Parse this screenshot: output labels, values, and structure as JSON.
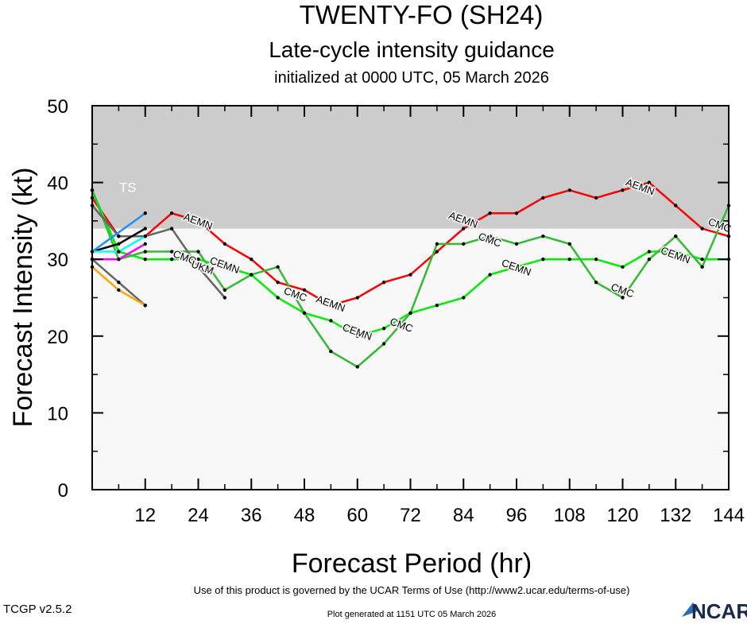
{
  "chart_data": {
    "type": "line",
    "title": "TWENTY-FO (SH24)",
    "subtitle": "Late-cycle intensity guidance",
    "subtitle2": "initialized at 0000 UTC, 05 March 2026",
    "xlabel": "Forecast Period (hr)",
    "ylabel": "Forecast Intensity (kt)",
    "xlim": [
      0,
      144
    ],
    "ylim": [
      0,
      50
    ],
    "xticks": [
      12,
      24,
      36,
      48,
      60,
      72,
      84,
      96,
      108,
      120,
      132,
      144
    ],
    "yticks": [
      0,
      10,
      20,
      30,
      40,
      50
    ],
    "band": {
      "label": "TS",
      "from": 34,
      "to": 50,
      "color": "#cccccc"
    },
    "background": "#f8f8f8",
    "series": [
      {
        "name": "AEMN",
        "color": "#ff0000",
        "x": [
          0,
          6,
          12,
          18,
          24,
          30,
          36,
          42,
          48,
          54,
          60,
          66,
          72,
          78,
          84,
          90,
          96,
          102,
          108,
          114,
          120,
          126,
          132,
          138,
          144
        ],
        "values": [
          38,
          33,
          33,
          36,
          35,
          32,
          30,
          27,
          26,
          24,
          25,
          27,
          28,
          31,
          34,
          36,
          36,
          38,
          39,
          38,
          39,
          40,
          37,
          34,
          33
        ]
      },
      {
        "name": "CEMN",
        "color": "#00ee00",
        "x": [
          0,
          6,
          12,
          18,
          24,
          30,
          36,
          42,
          48,
          54,
          60,
          66,
          72,
          78,
          84,
          90,
          96,
          102,
          108,
          114,
          120,
          126,
          132,
          138,
          144
        ],
        "values": [
          39,
          31,
          30,
          30,
          30,
          29,
          28,
          25,
          23,
          22,
          20,
          21,
          23,
          24,
          25,
          28,
          29,
          30,
          30,
          30,
          29,
          31,
          31,
          30,
          30
        ]
      },
      {
        "name": "CMC",
        "color": "#33bb33",
        "x": [
          0,
          6,
          12,
          18,
          24,
          30,
          36,
          42,
          48,
          54,
          60,
          66,
          72,
          78,
          84,
          90,
          96,
          102,
          108,
          114,
          120,
          126,
          132,
          138,
          144
        ],
        "values": [
          39,
          30,
          31,
          31,
          31,
          26,
          28,
          29,
          23,
          18,
          16,
          19,
          23,
          32,
          32,
          33,
          32,
          33,
          32,
          27,
          25,
          30,
          33,
          29,
          37
        ]
      },
      {
        "name": "UKM",
        "color": "#666666",
        "x": [
          0,
          6,
          12,
          18,
          24,
          30
        ],
        "values": [
          37,
          33,
          33,
          34,
          29,
          25
        ]
      },
      {
        "color": "#000000",
        "x": [
          0,
          6,
          12
        ],
        "values": [
          31,
          32,
          34
        ]
      },
      {
        "color": "#1e90ff",
        "x": [
          0,
          12
        ],
        "values": [
          31,
          36
        ]
      },
      {
        "color": "#00ffff",
        "x": [
          0,
          6,
          12
        ],
        "values": [
          31,
          31,
          33
        ]
      },
      {
        "color": "#ff00ff",
        "x": [
          0,
          6,
          12
        ],
        "values": [
          30,
          30,
          32
        ]
      },
      {
        "color": "#666666",
        "x": [
          0,
          6,
          12
        ],
        "values": [
          30,
          27,
          24
        ]
      },
      {
        "color": "#ffa500",
        "x": [
          0,
          6,
          12
        ],
        "values": [
          29,
          26,
          24
        ]
      }
    ],
    "labels": [
      {
        "text": "AEMN",
        "x": 24,
        "y": 35
      },
      {
        "text": "AEMN",
        "x": 54,
        "y": 24.3
      },
      {
        "text": "AEMN",
        "x": 84,
        "y": 35.2
      },
      {
        "text": "AEMN",
        "x": 124,
        "y": 39.5
      },
      {
        "text": "CEMN",
        "x": 30,
        "y": 29.3
      },
      {
        "text": "CEMN",
        "x": 60,
        "y": 20.6
      },
      {
        "text": "CEMN",
        "x": 96,
        "y": 29
      },
      {
        "text": "CEMN",
        "x": 132,
        "y": 30.6
      },
      {
        "text": "CMQ",
        "x": 21,
        "y": 30.3
      },
      {
        "text": "UKM",
        "x": 25,
        "y": 29
      },
      {
        "text": "CMC",
        "x": 46,
        "y": 25.5
      },
      {
        "text": "CMC",
        "x": 70,
        "y": 21.5
      },
      {
        "text": "CMC",
        "x": 90,
        "y": 32.6
      },
      {
        "text": "CMC",
        "x": 120,
        "y": 26
      },
      {
        "text": "CMC",
        "x": 142,
        "y": 34.5
      }
    ]
  },
  "footer": {
    "terms": "Use of this product is governed by the UCAR Terms of Use (http://www2.ucar.edu/terms-of-use)",
    "version": "TCGP v2.5.2",
    "generated": "Plot generated at 1151 UTC   05 March 2026",
    "logo": "NCAR"
  }
}
